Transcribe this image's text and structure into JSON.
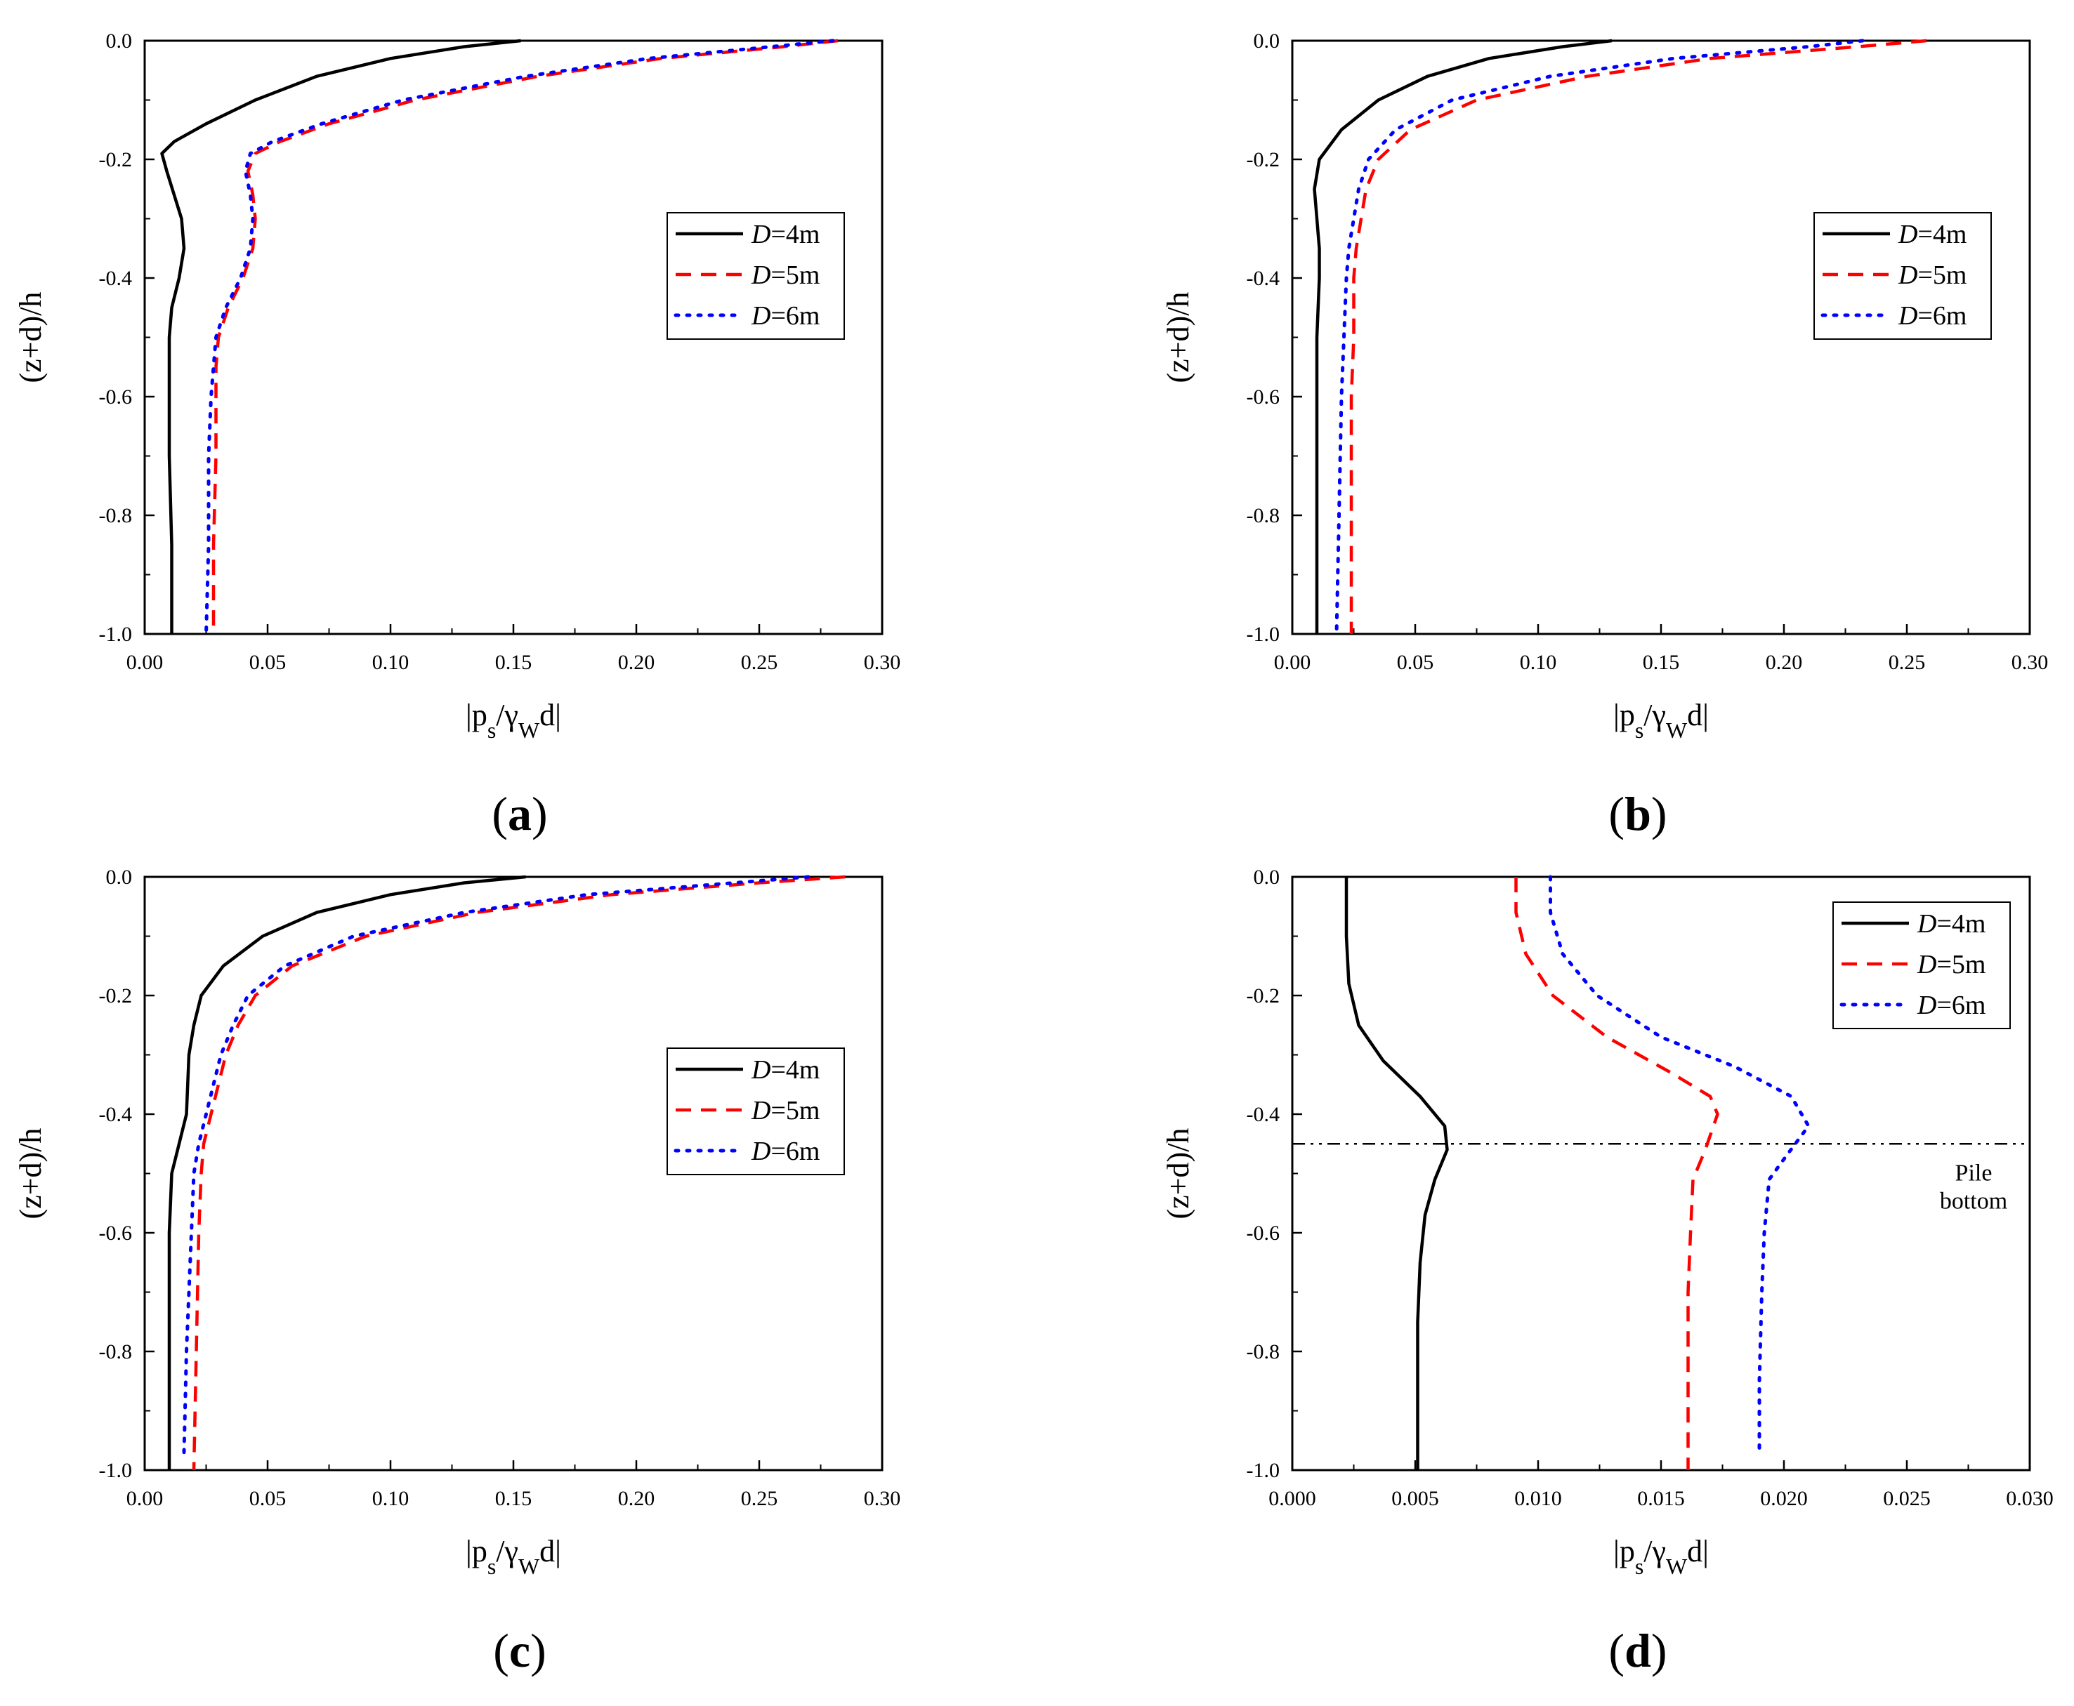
{
  "figure": {
    "panels": [
      "a",
      "b",
      "c",
      "d"
    ]
  },
  "chart_data": [
    {
      "id": "a",
      "type": "line",
      "panel_label": "a",
      "xlabel": "|ps/γWd|",
      "ylabel": "(z+d)/h",
      "xlim": [
        0,
        0.3
      ],
      "ylim": [
        -1.0,
        0.0
      ],
      "xticks": [
        0,
        0.05,
        0.1,
        0.15,
        0.2,
        0.25,
        0.3
      ],
      "xtick_labels": [
        "0.00",
        "0.05",
        "0.10",
        "0.15",
        "0.20",
        "0.25",
        "0.30"
      ],
      "yticks": [
        0.0,
        -0.2,
        -0.4,
        -0.6,
        -0.8,
        -1.0
      ],
      "ytick_labels": [
        "0.0",
        "-0.2",
        "-0.4",
        "-0.6",
        "-0.8",
        "-1.0"
      ],
      "legend": "right-upper",
      "series": [
        {
          "name": "D=4m",
          "var": "D",
          "eq": "=4m",
          "color": "#000000",
          "style": "solid",
          "x": [
            0.153,
            0.13,
            0.1,
            0.07,
            0.045,
            0.025,
            0.012,
            0.007,
            0.009,
            0.012,
            0.015,
            0.016,
            0.014,
            0.011,
            0.01,
            0.01,
            0.01,
            0.011,
            0.011
          ],
          "y": [
            0.0,
            -0.01,
            -0.03,
            -0.06,
            -0.1,
            -0.14,
            -0.17,
            -0.19,
            -0.22,
            -0.26,
            -0.3,
            -0.35,
            -0.4,
            -0.45,
            -0.5,
            -0.6,
            -0.7,
            -0.85,
            -1.0
          ]
        },
        {
          "name": "D=5m",
          "var": "D",
          "eq": "=5m",
          "color": "#ff0000",
          "style": "dashed",
          "x": [
            0.282,
            0.26,
            0.21,
            0.16,
            0.11,
            0.075,
            0.055,
            0.045,
            0.042,
            0.044,
            0.045,
            0.044,
            0.04,
            0.034,
            0.03,
            0.029,
            0.029,
            0.029,
            0.028,
            0.028
          ],
          "y": [
            0.0,
            -0.01,
            -0.03,
            -0.06,
            -0.1,
            -0.14,
            -0.17,
            -0.19,
            -0.22,
            -0.26,
            -0.3,
            -0.35,
            -0.4,
            -0.45,
            -0.5,
            -0.55,
            -0.6,
            -0.7,
            -0.85,
            -1.0
          ]
        },
        {
          "name": "D=6m",
          "var": "D",
          "eq": "=6m",
          "color": "#0000ff",
          "style": "dotted",
          "x": [
            0.28,
            0.255,
            0.205,
            0.155,
            0.105,
            0.072,
            0.052,
            0.043,
            0.041,
            0.043,
            0.044,
            0.043,
            0.039,
            0.033,
            0.029,
            0.028,
            0.027,
            0.026,
            0.026,
            0.025
          ],
          "y": [
            0.0,
            -0.01,
            -0.03,
            -0.06,
            -0.1,
            -0.14,
            -0.17,
            -0.19,
            -0.22,
            -0.26,
            -0.3,
            -0.35,
            -0.4,
            -0.45,
            -0.5,
            -0.55,
            -0.6,
            -0.7,
            -0.85,
            -1.0
          ]
        }
      ]
    },
    {
      "id": "b",
      "type": "line",
      "panel_label": "b",
      "xlabel": "|ps/γWd|",
      "ylabel": "(z+d)/h",
      "xlim": [
        0,
        0.3
      ],
      "ylim": [
        -1.0,
        0.0
      ],
      "xticks": [
        0,
        0.05,
        0.1,
        0.15,
        0.2,
        0.25,
        0.3
      ],
      "xtick_labels": [
        "0.00",
        "0.05",
        "0.10",
        "0.15",
        "0.20",
        "0.25",
        "0.30"
      ],
      "yticks": [
        0.0,
        -0.2,
        -0.4,
        -0.6,
        -0.8,
        -1.0
      ],
      "ytick_labels": [
        "0.0",
        "-0.2",
        "-0.4",
        "-0.6",
        "-0.8",
        "-1.0"
      ],
      "legend": "right-upper",
      "series": [
        {
          "name": "D=4m",
          "var": "D",
          "eq": "=4m",
          "color": "#000000",
          "style": "solid",
          "x": [
            0.13,
            0.11,
            0.08,
            0.055,
            0.035,
            0.02,
            0.011,
            0.009,
            0.01,
            0.011,
            0.011,
            0.01,
            0.01,
            0.01,
            0.01
          ],
          "y": [
            0.0,
            -0.01,
            -0.03,
            -0.06,
            -0.1,
            -0.15,
            -0.2,
            -0.25,
            -0.3,
            -0.35,
            -0.4,
            -0.5,
            -0.6,
            -0.8,
            -1.0
          ]
        },
        {
          "name": "D=5m",
          "var": "D",
          "eq": "=5m",
          "color": "#ff0000",
          "style": "dashed",
          "x": [
            0.258,
            0.23,
            0.17,
            0.12,
            0.075,
            0.048,
            0.035,
            0.03,
            0.028,
            0.026,
            0.025,
            0.025,
            0.024,
            0.024,
            0.024
          ],
          "y": [
            0.0,
            -0.01,
            -0.03,
            -0.06,
            -0.1,
            -0.15,
            -0.2,
            -0.25,
            -0.3,
            -0.35,
            -0.4,
            -0.5,
            -0.6,
            -0.8,
            -1.0
          ]
        },
        {
          "name": "D=6m",
          "var": "D",
          "eq": "=6m",
          "color": "#0000ff",
          "style": "dotted",
          "x": [
            0.232,
            0.21,
            0.155,
            0.105,
            0.065,
            0.042,
            0.031,
            0.027,
            0.025,
            0.023,
            0.022,
            0.021,
            0.02,
            0.019,
            0.018
          ],
          "y": [
            0.0,
            -0.01,
            -0.03,
            -0.06,
            -0.1,
            -0.15,
            -0.2,
            -0.25,
            -0.3,
            -0.35,
            -0.4,
            -0.5,
            -0.6,
            -0.8,
            -1.0
          ]
        }
      ]
    },
    {
      "id": "c",
      "type": "line",
      "panel_label": "c",
      "xlabel": "|ps/γWd|",
      "ylabel": "(z+d)/h",
      "xlim": [
        0,
        0.3
      ],
      "ylim": [
        -1.0,
        0.0
      ],
      "xticks": [
        0,
        0.05,
        0.1,
        0.15,
        0.2,
        0.25,
        0.3
      ],
      "xtick_labels": [
        "0.00",
        "0.05",
        "0.10",
        "0.15",
        "0.20",
        "0.25",
        "0.30"
      ],
      "yticks": [
        0.0,
        -0.2,
        -0.4,
        -0.6,
        -0.8,
        -1.0
      ],
      "ytick_labels": [
        "0.0",
        "-0.2",
        "-0.4",
        "-0.6",
        "-0.8",
        "-1.0"
      ],
      "legend": "right-middle",
      "series": [
        {
          "name": "D=4m",
          "var": "D",
          "eq": "=4m",
          "color": "#000000",
          "style": "solid",
          "x": [
            0.155,
            0.13,
            0.1,
            0.07,
            0.048,
            0.032,
            0.023,
            0.02,
            0.018,
            0.017,
            0.014,
            0.011,
            0.01,
            0.01,
            0.01
          ],
          "y": [
            0.0,
            -0.01,
            -0.03,
            -0.06,
            -0.1,
            -0.15,
            -0.2,
            -0.25,
            -0.3,
            -0.4,
            -0.45,
            -0.5,
            -0.6,
            -0.8,
            -1.0
          ]
        },
        {
          "name": "D=5m",
          "var": "D",
          "eq": "=5m",
          "color": "#ff0000",
          "style": "dashed",
          "x": [
            0.285,
            0.25,
            0.19,
            0.135,
            0.09,
            0.06,
            0.045,
            0.038,
            0.033,
            0.027,
            0.024,
            0.023,
            0.022,
            0.021,
            0.02
          ],
          "y": [
            0.0,
            -0.01,
            -0.03,
            -0.06,
            -0.1,
            -0.15,
            -0.2,
            -0.25,
            -0.3,
            -0.4,
            -0.45,
            -0.5,
            -0.6,
            -0.8,
            -1.0
          ]
        },
        {
          "name": "D=6m",
          "var": "D",
          "eq": "=6m",
          "color": "#0000ff",
          "style": "dotted",
          "x": [
            0.27,
            0.24,
            0.18,
            0.13,
            0.085,
            0.057,
            0.042,
            0.036,
            0.031,
            0.025,
            0.022,
            0.02,
            0.019,
            0.017,
            0.016
          ],
          "y": [
            0.0,
            -0.01,
            -0.03,
            -0.06,
            -0.1,
            -0.15,
            -0.2,
            -0.25,
            -0.3,
            -0.4,
            -0.45,
            -0.5,
            -0.6,
            -0.8,
            -0.97
          ]
        }
      ]
    },
    {
      "id": "d",
      "type": "line",
      "panel_label": "d",
      "xlabel": "|ps/γWd|",
      "ylabel": "(z+d)/h",
      "xlim": [
        0,
        0.03
      ],
      "ylim": [
        -1.0,
        0.0
      ],
      "xticks": [
        0,
        0.005,
        0.01,
        0.015,
        0.02,
        0.025,
        0.03
      ],
      "xtick_labels": [
        "0.000",
        "0.005",
        "0.010",
        "0.015",
        "0.020",
        "0.025",
        "0.030"
      ],
      "yticks": [
        0.0,
        -0.2,
        -0.4,
        -0.6,
        -0.8,
        -1.0
      ],
      "ytick_labels": [
        "0.0",
        "-0.2",
        "-0.4",
        "-0.6",
        "-0.8",
        "-1.0"
      ],
      "legend": "top-right",
      "reference_line": {
        "y": -0.45,
        "style": "dash-dot",
        "label_lines": [
          "Pile",
          "bottom"
        ]
      },
      "series": [
        {
          "name": "D=4m",
          "var": "D",
          "eq": "=4m",
          "color": "#000000",
          "style": "solid",
          "x": [
            0.0022,
            0.0022,
            0.0023,
            0.0027,
            0.0037,
            0.0052,
            0.0062,
            0.0063,
            0.0058,
            0.0054,
            0.0052,
            0.0051,
            0.0051,
            0.0051
          ],
          "y": [
            0.0,
            -0.1,
            -0.18,
            -0.25,
            -0.31,
            -0.37,
            -0.42,
            -0.46,
            -0.51,
            -0.57,
            -0.65,
            -0.75,
            -0.85,
            -1.0
          ]
        },
        {
          "name": "D=5m",
          "var": "D",
          "eq": "=5m",
          "color": "#ff0000",
          "style": "dashed",
          "x": [
            0.0091,
            0.0091,
            0.0095,
            0.0106,
            0.0128,
            0.0154,
            0.017,
            0.0173,
            0.0168,
            0.0163,
            0.0162,
            0.0161,
            0.0161,
            0.0161
          ],
          "y": [
            0.0,
            -0.06,
            -0.13,
            -0.2,
            -0.27,
            -0.33,
            -0.37,
            -0.4,
            -0.46,
            -0.51,
            -0.6,
            -0.7,
            -0.85,
            -1.0
          ]
        },
        {
          "name": "D=6m",
          "var": "D",
          "eq": "=6m",
          "color": "#0000ff",
          "style": "dotted",
          "x": [
            0.0105,
            0.0105,
            0.011,
            0.0124,
            0.015,
            0.018,
            0.0203,
            0.021,
            0.0201,
            0.0194,
            0.0192,
            0.0191,
            0.019,
            0.019
          ],
          "y": [
            0.0,
            -0.06,
            -0.13,
            -0.2,
            -0.27,
            -0.32,
            -0.37,
            -0.42,
            -0.47,
            -0.51,
            -0.6,
            -0.7,
            -0.85,
            -0.97
          ]
        }
      ]
    }
  ]
}
